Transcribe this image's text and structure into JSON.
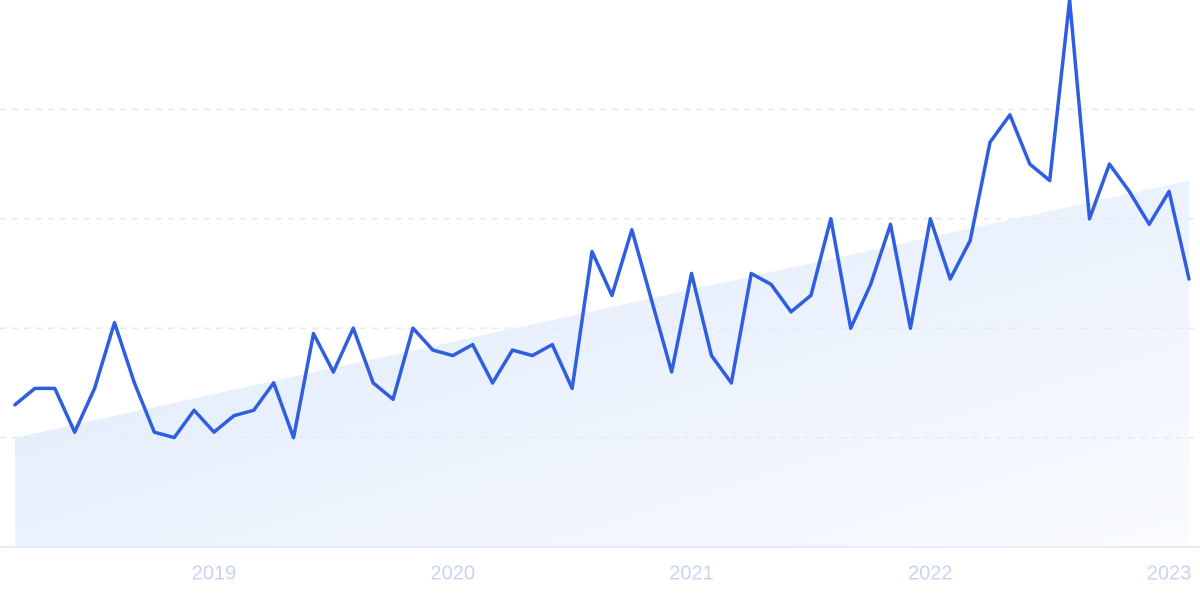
{
  "chart_data": {
    "type": "line",
    "categories": [
      null,
      null,
      null,
      null,
      null,
      null,
      null,
      null,
      null,
      null,
      "2019",
      null,
      null,
      null,
      null,
      null,
      null,
      null,
      null,
      null,
      null,
      null,
      "2020",
      null,
      null,
      null,
      null,
      null,
      null,
      null,
      null,
      null,
      null,
      null,
      "2021",
      null,
      null,
      null,
      null,
      null,
      null,
      null,
      null,
      null,
      null,
      null,
      "2022",
      null,
      null,
      null,
      null,
      null,
      null,
      null,
      null,
      null,
      null,
      null,
      "2023",
      null
    ],
    "values": [
      26,
      29,
      29,
      21,
      29,
      41,
      30,
      21,
      20,
      25,
      21,
      24,
      25,
      30,
      20,
      39,
      32,
      40,
      30,
      27,
      40,
      36,
      35,
      37,
      30,
      36,
      35,
      37,
      29,
      54,
      46,
      58,
      45,
      32,
      50,
      35,
      30,
      50,
      48,
      43,
      46,
      60,
      40,
      48,
      59,
      40,
      60,
      49,
      56,
      74,
      79,
      70,
      67,
      100,
      60,
      70,
      65,
      59,
      65,
      49
    ],
    "color": "#2f5fe0",
    "trend_values": [
      20,
      67
    ],
    "trend_color": "#dce8fb",
    "ylim": [
      0,
      100
    ],
    "yticks": [
      0,
      20,
      40,
      60,
      80
    ],
    "grid": true
  }
}
